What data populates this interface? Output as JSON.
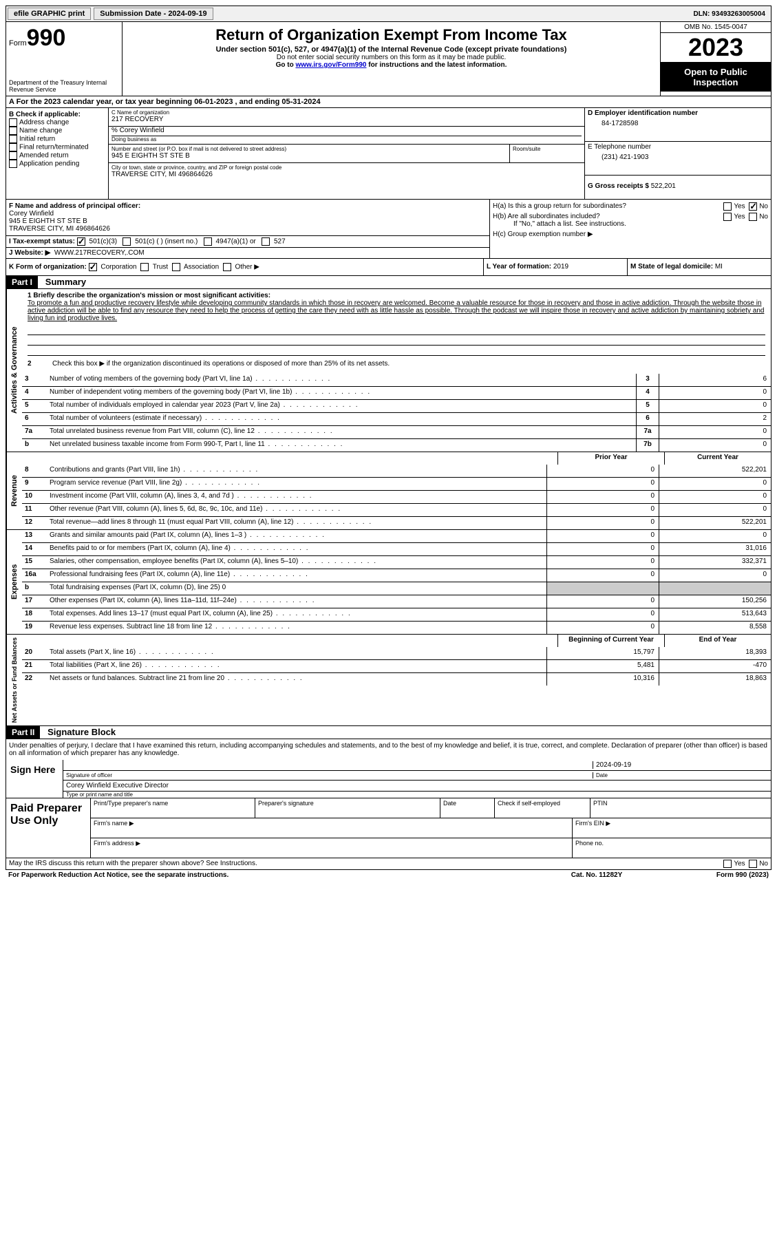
{
  "topbar": {
    "efile": "efile GRAPHIC print",
    "submission_label": "Submission Date - 2024-09-19",
    "dln": "DLN: 93493263005004"
  },
  "header": {
    "form_word": "Form",
    "form_num": "990",
    "dept": "Department of the Treasury Internal Revenue Service",
    "title": "Return of Organization Exempt From Income Tax",
    "sub": "Under section 501(c), 527, or 4947(a)(1) of the Internal Revenue Code (except private foundations)",
    "note1": "Do not enter social security numbers on this form as it may be made public.",
    "note2_pre": "Go to ",
    "note2_link": "www.irs.gov/Form990",
    "note2_post": " for instructions and the latest information.",
    "omb": "OMB No. 1545-0047",
    "year": "2023",
    "open": "Open to Public Inspection"
  },
  "line_a": "A For the 2023 calendar year, or tax year beginning 06-01-2023   , and ending 05-31-2024",
  "col_b": {
    "hdr": "B Check if applicable:",
    "items": [
      "Address change",
      "Name change",
      "Initial return",
      "Final return/terminated",
      "Amended return",
      "Application pending"
    ]
  },
  "col_c": {
    "name_lbl": "C Name of organization",
    "name": "217 RECOVERY",
    "care_of": "% Corey Winfield",
    "dba_lbl": "Doing business as",
    "addr_lbl": "Number and street (or P.O. box if mail is not delivered to street address)",
    "room_lbl": "Room/suite",
    "addr": "945 E EIGHTH ST STE B",
    "city_lbl": "City or town, state or province, country, and ZIP or foreign postal code",
    "city": "TRAVERSE CITY, MI  496864626"
  },
  "col_d": {
    "ein_lbl": "D Employer identification number",
    "ein": "84-1728598",
    "tel_lbl": "E Telephone number",
    "tel": "(231) 421-1903",
    "gross_lbl": "G Gross receipts $",
    "gross": "522,201"
  },
  "block_f": {
    "lbl": "F Name and address of principal officer:",
    "name": "Corey Winfield",
    "addr1": "945 E EIGHTH ST STE B",
    "addr2": "TRAVERSE CITY, MI  496864626"
  },
  "block_h": {
    "ha": "H(a)  Is this a group return for subordinates?",
    "hb": "H(b)  Are all subordinates included?",
    "hb_note": "If \"No,\" attach a list. See instructions.",
    "hc": "H(c)  Group exemption number ▶"
  },
  "row_i": {
    "lbl": "I   Tax-exempt status:",
    "opts": [
      "501(c)(3)",
      "501(c) (  ) (insert no.)",
      "4947(a)(1) or",
      "527"
    ]
  },
  "row_j": {
    "lbl": "J   Website: ▶",
    "val": "WWW.217RECOVERY,.COM"
  },
  "row_k": {
    "lbl": "K Form of organization:",
    "opts": [
      "Corporation",
      "Trust",
      "Association",
      "Other ▶"
    ]
  },
  "row_l": {
    "lbl": "L Year of formation:",
    "val": "2019"
  },
  "row_m": {
    "lbl": "M State of legal domicile:",
    "val": "MI"
  },
  "part1": {
    "tag": "Part I",
    "title": "Summary"
  },
  "mission": {
    "lbl": "1   Briefly describe the organization's mission or most significant activities:",
    "text": "To promote a fun and productive recovery lifestyle while developing community standards in which those in recovery are welcomed. Become a valuable resource for those in recovery and those in active addiction. Through the website those in active addiction will be able to find any resource they need to help the process of getting the care they need with as little hassle as possible. Through the podcast we will inspire those in recovery and active addiction by maintaining sobriety and living fun ind productive lives."
  },
  "governance": {
    "tab": "Activities & Governance",
    "line2": "Check this box ▶       if the organization discontinued its operations or disposed of more than 25% of its net assets.",
    "rows": [
      {
        "n": "3",
        "d": "Number of voting members of the governing body (Part VI, line 1a)",
        "box": "3",
        "v": "6"
      },
      {
        "n": "4",
        "d": "Number of independent voting members of the governing body (Part VI, line 1b)",
        "box": "4",
        "v": "0"
      },
      {
        "n": "5",
        "d": "Total number of individuals employed in calendar year 2023 (Part V, line 2a)",
        "box": "5",
        "v": "0"
      },
      {
        "n": "6",
        "d": "Total number of volunteers (estimate if necessary)",
        "box": "6",
        "v": "2"
      },
      {
        "n": "7a",
        "d": "Total unrelated business revenue from Part VIII, column (C), line 12",
        "box": "7a",
        "v": "0"
      },
      {
        "n": " b",
        "d": "Net unrelated business taxable income from Form 990-T, Part I, line 11",
        "box": "7b",
        "v": "0"
      }
    ]
  },
  "col_hdrs": {
    "prior": "Prior Year",
    "current": "Current Year"
  },
  "revenue": {
    "tab": "Revenue",
    "rows": [
      {
        "n": "8",
        "d": "Contributions and grants (Part VIII, line 1h)",
        "p": "0",
        "c": "522,201"
      },
      {
        "n": "9",
        "d": "Program service revenue (Part VIII, line 2g)",
        "p": "0",
        "c": "0"
      },
      {
        "n": "10",
        "d": "Investment income (Part VIII, column (A), lines 3, 4, and 7d )",
        "p": "0",
        "c": "0"
      },
      {
        "n": "11",
        "d": "Other revenue (Part VIII, column (A), lines 5, 6d, 8c, 9c, 10c, and 11e)",
        "p": "0",
        "c": "0"
      },
      {
        "n": "12",
        "d": "Total revenue—add lines 8 through 11 (must equal Part VIII, column (A), line 12)",
        "p": "0",
        "c": "522,201"
      }
    ]
  },
  "expenses": {
    "tab": "Expenses",
    "rows": [
      {
        "n": "13",
        "d": "Grants and similar amounts paid (Part IX, column (A), lines 1–3 )",
        "p": "0",
        "c": "0"
      },
      {
        "n": "14",
        "d": "Benefits paid to or for members (Part IX, column (A), line 4)",
        "p": "0",
        "c": "31,016"
      },
      {
        "n": "15",
        "d": "Salaries, other compensation, employee benefits (Part IX, column (A), lines 5–10)",
        "p": "0",
        "c": "332,371"
      },
      {
        "n": "16a",
        "d": "Professional fundraising fees (Part IX, column (A), line 11e)",
        "p": "0",
        "c": "0"
      },
      {
        "n": "  b",
        "d": "Total fundraising expenses (Part IX, column (D), line 25) 0",
        "shaded": true
      },
      {
        "n": "17",
        "d": "Other expenses (Part IX, column (A), lines 11a–11d, 11f–24e)",
        "p": "0",
        "c": "150,256"
      },
      {
        "n": "18",
        "d": "Total expenses. Add lines 13–17 (must equal Part IX, column (A), line 25)",
        "p": "0",
        "c": "513,643"
      },
      {
        "n": "19",
        "d": "Revenue less expenses. Subtract line 18 from line 12",
        "p": "0",
        "c": "8,558"
      }
    ]
  },
  "net_hdrs": {
    "begin": "Beginning of Current Year",
    "end": "End of Year"
  },
  "netassets": {
    "tab": "Net Assets or Fund Balances",
    "rows": [
      {
        "n": "20",
        "d": "Total assets (Part X, line 16)",
        "p": "15,797",
        "c": "18,393"
      },
      {
        "n": "21",
        "d": "Total liabilities (Part X, line 26)",
        "p": "5,481",
        "c": "-470"
      },
      {
        "n": "22",
        "d": "Net assets or fund balances. Subtract line 21 from line 20",
        "p": "10,316",
        "c": "18,863"
      }
    ]
  },
  "part2": {
    "tag": "Part II",
    "title": "Signature Block"
  },
  "sig": {
    "declaration": "Under penalties of perjury, I declare that I have examined this return, including accompanying schedules and statements, and to the best of my knowledge and belief, it is true, correct, and complete. Declaration of preparer (other than officer) is based on all information of which preparer has any knowledge.",
    "sign_here": "Sign Here",
    "date": "2024-09-19",
    "sig_lbl": "Signature of officer",
    "date_lbl": "Date",
    "name": "Corey Winfield  Executive Director",
    "name_lbl": "Type or print name and title"
  },
  "prep": {
    "title": "Paid Preparer Use Only",
    "h1": "Print/Type preparer's name",
    "h2": "Preparer's signature",
    "h3": "Date",
    "h4": "Check       if self-employed",
    "h5": "PTIN",
    "firm_name": "Firm's name ▶",
    "firm_ein": "Firm's EIN ▶",
    "firm_addr": "Firm's address ▶",
    "phone": "Phone no."
  },
  "footer": {
    "q": "May the IRS discuss this return with the preparer shown above? See Instructions.",
    "yes": "Yes",
    "no": "No"
  },
  "bottom": {
    "left": "For Paperwork Reduction Act Notice, see the separate instructions.",
    "mid": "Cat. No. 11282Y",
    "right": "Form 990 (2023)"
  }
}
